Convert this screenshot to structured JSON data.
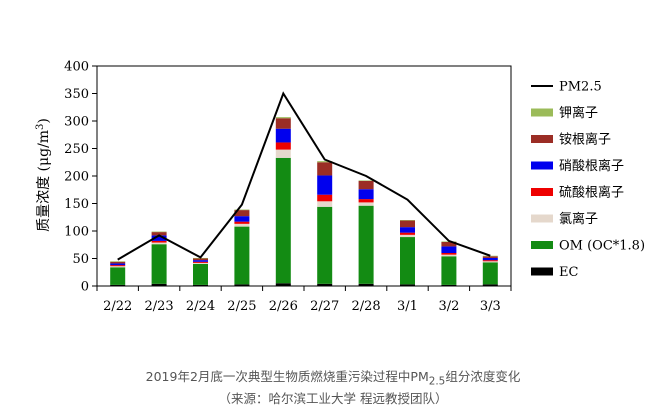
{
  "chart_data": {
    "type": "bar",
    "stacked": true,
    "categories": [
      "2/22",
      "2/23",
      "2/24",
      "2/25",
      "2/26",
      "2/27",
      "2/28",
      "3/1",
      "3/2",
      "3/3"
    ],
    "ylabel_prefix": "质量浓度 (μg/m",
    "ylabel_sup": "3",
    "ylabel_suffix": ")",
    "ylim": [
      0,
      400
    ],
    "yticks": [
      0,
      50,
      100,
      150,
      200,
      250,
      300,
      350,
      400
    ],
    "series": [
      {
        "name": "EC",
        "color": "#000000",
        "values": [
          2,
          4,
          2,
          3,
          5,
          4,
          4,
          3,
          2,
          3
        ]
      },
      {
        "name": "OM (OC*1.8)",
        "color": "#138b13",
        "values": [
          32,
          72,
          38,
          105,
          228,
          140,
          142,
          86,
          52,
          40
        ]
      },
      {
        "name": "氯离子",
        "color": "#e5d8cc",
        "values": [
          2,
          3,
          2,
          5,
          15,
          10,
          6,
          4,
          3,
          2
        ]
      },
      {
        "name": "硫酸根离子",
        "color": "#ee0000",
        "values": [
          2,
          3,
          2,
          4,
          13,
          12,
          6,
          4,
          3,
          2
        ]
      },
      {
        "name": "硝酸根离子",
        "color": "#0000ee",
        "values": [
          3,
          10,
          3,
          10,
          25,
          35,
          18,
          10,
          12,
          4
        ]
      },
      {
        "name": "铵根离子",
        "color": "#9b2d25",
        "values": [
          3,
          6,
          3,
          11,
          19,
          24,
          15,
          12,
          8,
          3
        ]
      },
      {
        "name": "钾离子",
        "color": "#9bbb59",
        "values": [
          1,
          1,
          1,
          1,
          2,
          2,
          1,
          1,
          1,
          1
        ]
      }
    ],
    "line": {
      "name": "PM2.5",
      "color": "#000000",
      "values": [
        48,
        92,
        52,
        148,
        350,
        230,
        200,
        157,
        82,
        55
      ]
    },
    "legend_order": [
      "PM2.5",
      "钾离子",
      "铵根离子",
      "硝酸根离子",
      "硫酸根离子",
      "氯离子",
      "OM (OC*1.8)",
      "EC"
    ]
  },
  "caption": {
    "line1_prefix": "2019年2月底一次典型生物质燃烧重污染过程中PM",
    "line1_sub": "2.5",
    "line1_suffix": "组分浓度变化",
    "line2": "（来源：哈尔滨工业大学  程远教授团队）"
  }
}
